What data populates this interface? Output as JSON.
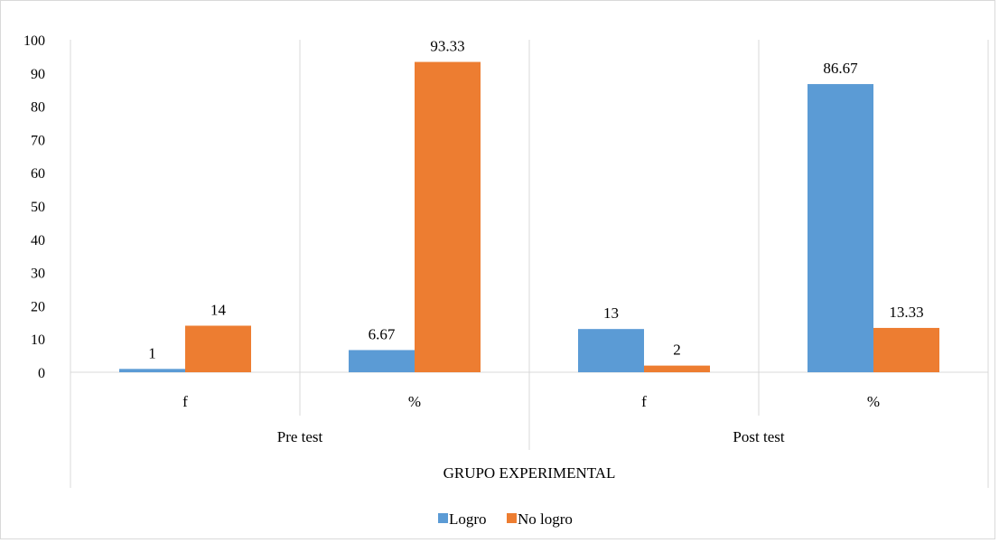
{
  "chart_data": {
    "type": "bar",
    "title": "",
    "xlabel": "GRUPO EXPERIMENTAL",
    "ylabel": "",
    "ylim": [
      0,
      100
    ],
    "yticks": [
      0,
      10,
      20,
      30,
      40,
      50,
      60,
      70,
      80,
      90,
      100
    ],
    "grid": false,
    "legend_position": "bottom",
    "groups": [
      {
        "label": "Pre test",
        "categories": [
          "f",
          "%"
        ]
      },
      {
        "label": "Post test",
        "categories": [
          "f",
          "%"
        ]
      }
    ],
    "categories": [
      "f",
      "%",
      "f",
      "%"
    ],
    "series": [
      {
        "name": "Logro",
        "color": "#5b9bd5",
        "values": [
          1,
          6.67,
          13,
          86.67
        ],
        "labels": [
          "1",
          "6.67",
          "13",
          "86.67"
        ]
      },
      {
        "name": "No logro",
        "color": "#ed7d31",
        "values": [
          14,
          93.33,
          2,
          13.33
        ],
        "labels": [
          "14",
          "93.33",
          "2",
          "13.33"
        ]
      }
    ]
  }
}
